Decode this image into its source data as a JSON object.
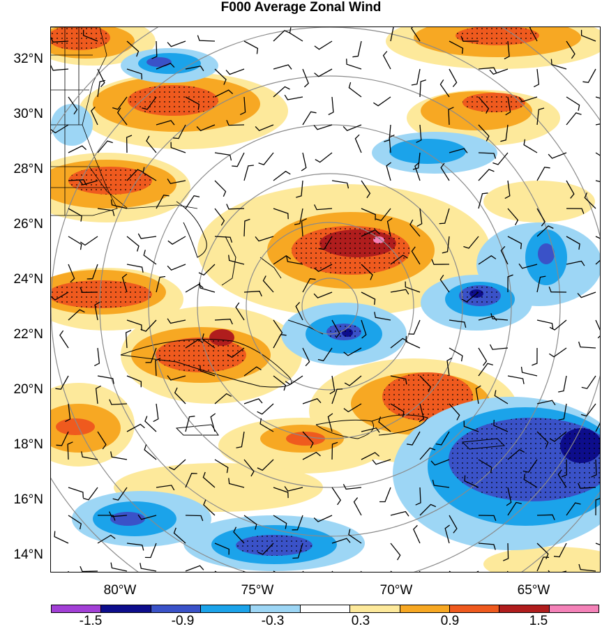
{
  "title": "F000 Average Zonal Wind",
  "axes": {
    "y_ticks": [
      "32°N",
      "30°N",
      "28°N",
      "26°N",
      "24°N",
      "22°N",
      "20°N",
      "18°N",
      "16°N",
      "14°N"
    ],
    "x_ticks": [
      "80°W",
      "75°W",
      "70°W",
      "65°W"
    ]
  },
  "colorbar": {
    "labels": [
      "-1.5",
      "-0.9",
      "-0.3",
      "0.3",
      "0.9",
      "1.5"
    ],
    "colors": [
      "#a23fd6",
      "#0d0d8c",
      "#3a52c8",
      "#1ba3ea",
      "#9dd6f5",
      "#ffffff",
      "#fde99b",
      "#f7a823",
      "#ef5a1e",
      "#b01d1d",
      "#f482b8"
    ]
  },
  "map": {
    "projection": "lat-lon",
    "extent": {
      "lon": [
        -83.0,
        -63.0
      ],
      "lat": [
        13.5,
        33.4
      ]
    },
    "overlay": "range rings centered near 23°N 72°W",
    "barbs": "wind barbs on regular grid",
    "stippling": "dots over strong anomaly regions"
  },
  "chart_data": {
    "type": "heatmap",
    "title": "F000 Average Zonal Wind",
    "levels": [
      -1.5,
      -1.2,
      -0.9,
      -0.6,
      -0.3,
      0.3,
      0.6,
      0.9,
      1.2,
      1.5
    ],
    "x_ticks_deg": [
      -80,
      -75,
      -70,
      -65
    ],
    "y_ticks_deg": [
      32,
      30,
      28,
      26,
      24,
      22,
      20,
      18,
      16,
      14
    ]
  }
}
